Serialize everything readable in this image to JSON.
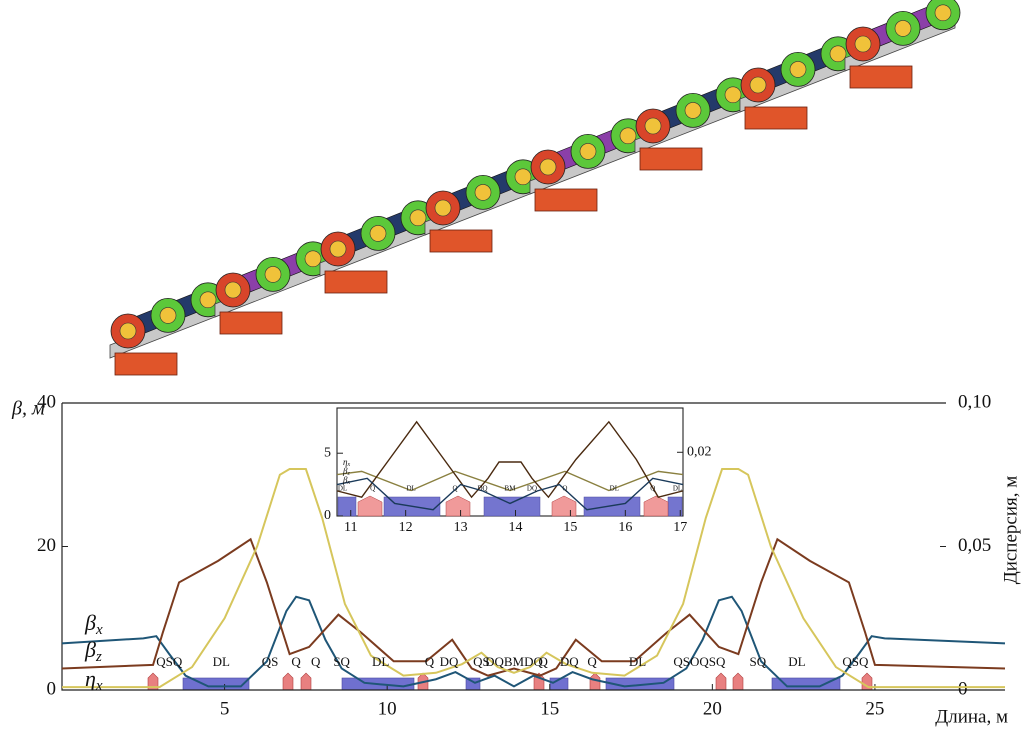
{
  "chart_data": [
    {
      "type": "line",
      "y_label": "β, м",
      "y2_label": "Дисперсия, м",
      "x_label": "Длина, м",
      "legend": "left",
      "xlim": [
        0,
        29
      ],
      "xticks": [
        5,
        10,
        15,
        20,
        25
      ],
      "ylim": [
        0,
        40
      ],
      "yticks": [
        0,
        20,
        40
      ],
      "y2lim": [
        0,
        0.1
      ],
      "y2ticks": [
        0,
        {
          "value": 0.05,
          "label": "0,05"
        },
        {
          "value": 0.1,
          "label": "0,10"
        }
      ],
      "series": [
        {
          "name": "βx",
          "color": "#1f5677",
          "x": [
            0,
            2.5,
            2.9,
            3.3,
            3.8,
            4.5,
            5.5,
            6.3,
            6.9,
            7.2,
            7.6,
            8.1,
            8.6,
            9.3,
            10.5,
            11.5,
            12.1,
            12.7,
            13.3,
            13.9,
            14.5,
            15.1,
            15.7,
            16.3,
            17.3,
            18.5,
            19.2,
            19.7,
            20.2,
            20.6,
            20.9,
            21.5,
            22.3,
            23.3,
            24.0,
            24.5,
            24.9,
            25.3,
            29
          ],
          "values": [
            6.5,
            7.2,
            7.5,
            5,
            2,
            0.5,
            0.5,
            4,
            11,
            13,
            12.5,
            7,
            3,
            1,
            0.5,
            1.5,
            2.5,
            1,
            2,
            0.5,
            2,
            1,
            2.5,
            1.5,
            0.5,
            1,
            3,
            7,
            12.5,
            13,
            11,
            4,
            0.5,
            0.5,
            2,
            5,
            7.5,
            7.2,
            6.5
          ]
        },
        {
          "name": "βz",
          "color": "#7b3b1f",
          "x": [
            0,
            2.8,
            3.1,
            3.6,
            4.8,
            5.8,
            6.3,
            7.0,
            7.6,
            8.5,
            9.2,
            10.2,
            11.2,
            12.0,
            12.6,
            13.1,
            13.9,
            14.7,
            15.2,
            15.8,
            16.6,
            17.6,
            18.6,
            19.3,
            20.2,
            20.8,
            21.5,
            22.0,
            23.0,
            24.2,
            24.7,
            25.0,
            29
          ],
          "values": [
            3,
            3.5,
            8,
            15,
            18,
            21,
            15,
            5,
            6,
            10.5,
            8,
            4,
            4,
            7,
            3,
            2,
            3,
            2,
            3,
            7,
            4,
            4,
            8,
            10.5,
            6,
            5,
            15,
            21,
            18,
            15,
            8,
            3.5,
            3
          ]
        },
        {
          "name": "ηx",
          "color": "#d6c65c",
          "axis": "y2",
          "x": [
            0,
            3.0,
            4.0,
            5.0,
            6.0,
            6.7,
            7.0,
            7.5,
            8.0,
            8.7,
            9.5,
            10.5,
            11.5,
            12.3,
            12.9,
            13.4,
            13.9,
            14.4,
            14.9,
            15.5,
            16.3,
            17.3,
            18.3,
            19.1,
            19.8,
            20.3,
            20.8,
            21.1,
            21.8,
            22.8,
            23.8,
            24.8,
            29
          ],
          "values": [
            0.001,
            0.001,
            0.008,
            0.025,
            0.05,
            0.075,
            0.077,
            0.077,
            0.06,
            0.03,
            0.012,
            0.005,
            0.006,
            0.009,
            0.013,
            0.008,
            0.006,
            0.008,
            0.013,
            0.009,
            0.006,
            0.005,
            0.012,
            0.03,
            0.06,
            0.077,
            0.077,
            0.075,
            0.05,
            0.025,
            0.008,
            0.001,
            0.001
          ]
        }
      ],
      "annotations": [
        {
          "text": "QSQ",
          "x": 3.3
        },
        {
          "text": "DL",
          "x": 4.9
        },
        {
          "text": "QS",
          "x": 6.4
        },
        {
          "text": "Q",
          "x": 7.2
        },
        {
          "text": "Q",
          "x": 7.8
        },
        {
          "text": "SQ",
          "x": 8.6
        },
        {
          "text": "DL",
          "x": 9.8
        },
        {
          "text": "Q",
          "x": 11.3
        },
        {
          "text": "DQ",
          "x": 11.9
        },
        {
          "text": "QS",
          "x": 12.9
        },
        {
          "text": "DQBMDQ",
          "x": 13.9
        },
        {
          "text": "Q",
          "x": 14.8
        },
        {
          "text": "DQ",
          "x": 15.6
        },
        {
          "text": "Q",
          "x": 16.3
        },
        {
          "text": "DL",
          "x": 17.7
        },
        {
          "text": "QSOQSQ",
          "x": 19.6
        },
        {
          "text": "SQ",
          "x": 21.4
        },
        {
          "text": "DL",
          "x": 22.6
        },
        {
          "text": "QSQ",
          "x": 24.4
        }
      ]
    },
    {
      "type": "line",
      "legend": "left",
      "xlim": [
        10.75,
        17.05
      ],
      "xticks": [
        11,
        12,
        13,
        14,
        15,
        16,
        17
      ],
      "ylim": [
        0,
        8.6
      ],
      "yticks": [
        0,
        5
      ],
      "y2lim": [
        0,
        0.0339
      ],
      "y2ticks": [
        {
          "value": 0.02,
          "label": "0,02"
        }
      ],
      "series": [
        {
          "name": "ηx",
          "color": "#8a8040",
          "axis": "y2",
          "x": [
            10.75,
            11.2,
            12.1,
            12.9,
            13.9,
            14.9,
            15.7,
            16.6,
            17.05
          ],
          "values": [
            0.013,
            0.014,
            0.008,
            0.014,
            0.008,
            0.014,
            0.008,
            0.014,
            0.013
          ]
        },
        {
          "name": "βz",
          "color": "#4a2a10",
          "x": [
            10.75,
            11.2,
            11.7,
            12.2,
            12.7,
            13.2,
            13.5,
            13.7,
            14.1,
            14.3,
            14.6,
            15.1,
            15.7,
            16.2,
            16.6,
            17.05
          ],
          "values": [
            2,
            1.5,
            4.5,
            7.5,
            4.5,
            1.5,
            3,
            4.3,
            4.3,
            3,
            1.5,
            4.5,
            7.5,
            4.5,
            1.5,
            2
          ]
        },
        {
          "name": "βx",
          "color": "#1a3a5a",
          "x": [
            10.75,
            11.3,
            11.8,
            12.5,
            13.0,
            13.4,
            13.9,
            14.4,
            14.8,
            15.3,
            16.0,
            16.5,
            17.05
          ],
          "values": [
            2.5,
            3,
            1,
            0.5,
            2.5,
            2,
            1,
            2,
            2.5,
            0.5,
            1,
            3,
            2.5
          ]
        }
      ],
      "annotations": [
        {
          "text": "DL",
          "x": 10.85
        },
        {
          "text": "Q",
          "x": 11.4
        },
        {
          "text": "DL",
          "x": 12.1
        },
        {
          "text": "Q",
          "x": 12.9
        },
        {
          "text": "DQ",
          "x": 13.4
        },
        {
          "text": "BM",
          "x": 13.9
        },
        {
          "text": "DQ",
          "x": 14.3
        },
        {
          "text": "Q",
          "x": 14.9
        },
        {
          "text": "DL",
          "x": 15.8
        },
        {
          "text": "Q",
          "x": 16.5
        },
        {
          "text": "DL",
          "x": 16.95
        }
      ]
    }
  ]
}
